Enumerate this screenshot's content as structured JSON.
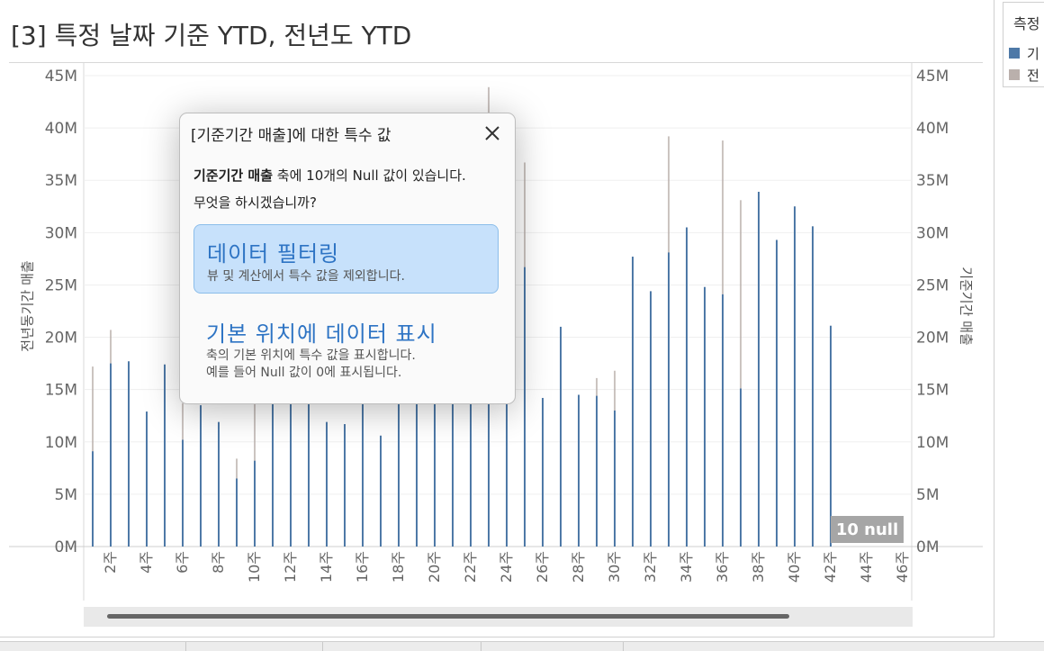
{
  "title": "[3] 특정 날짜 기준 YTD, 전년도 YTD",
  "legend": {
    "title": "측정",
    "items": [
      {
        "label": "기",
        "color": "#4e79a7"
      },
      {
        "label": "전",
        "color": "#bab0ac"
      }
    ]
  },
  "axes": {
    "left_title": "전년동기간 매출",
    "right_title": "기준기간 매출"
  },
  "null_badge": "10 null",
  "dialog": {
    "title": "[기준기간 매출]에 대한 특수 값",
    "message_bold": "기준기간 매출",
    "message_rest": " 축에 10개의 Null 값이 있습니다.",
    "question": "무엇을 하시겠습니까?",
    "options": [
      {
        "heading": "데이터 필터링",
        "sub1": "뷰 및 계산에서 특수 값을 제외합니다.",
        "selected": true
      },
      {
        "heading": "기본 위치에 데이터 표시",
        "sub1": "축의 기본 위치에 특수 값을 표시합니다.",
        "sub2": "예를 들어 Null 값이 0에 표시됩니다.",
        "selected": false
      }
    ]
  },
  "chart_data": {
    "type": "bar",
    "title": "",
    "xlabel": "",
    "ylabel_left": "전년동기간 매출",
    "ylabel_right": "기준기간 매출",
    "ylim": [
      0,
      45
    ],
    "y_unit": "M",
    "y_ticks": [
      "0M",
      "5M",
      "10M",
      "15M",
      "20M",
      "25M",
      "30M",
      "35M",
      "40M",
      "45M"
    ],
    "x_tick_labels": [
      "2주",
      "4주",
      "6주",
      "8주",
      "10주",
      "12주",
      "14주",
      "16주",
      "18주",
      "20주",
      "22주",
      "24주",
      "26주",
      "28주",
      "30주",
      "32주",
      "34주",
      "36주",
      "38주",
      "40주",
      "42주",
      "44주",
      "46주"
    ],
    "categories": [
      1,
      2,
      3,
      4,
      5,
      6,
      7,
      8,
      9,
      10,
      11,
      12,
      13,
      14,
      15,
      16,
      17,
      18,
      19,
      20,
      21,
      22,
      23,
      24,
      25,
      26,
      27,
      28,
      29,
      30,
      31,
      32,
      33,
      34,
      35,
      36,
      37,
      38,
      39,
      40,
      41,
      42,
      43,
      44,
      45,
      46
    ],
    "series": [
      {
        "name": "기준기간 매출",
        "color": "#4e79a7",
        "values": [
          9.1,
          17.5,
          17.7,
          12.9,
          17.4,
          10.2,
          13.5,
          11.9,
          6.5,
          8.2,
          14.8,
          13.9,
          14.1,
          11.9,
          11.7,
          15.0,
          10.6,
          14.9,
          14.6,
          15.6,
          16.1,
          16.6,
          15.6,
          34.7,
          26.7,
          14.2,
          21.0,
          14.5,
          14.4,
          13.0,
          27.7,
          24.4,
          28.1,
          30.5,
          24.8,
          24.1,
          15.1,
          33.9,
          29.3,
          32.5,
          30.6,
          21.1,
          null,
          null,
          null,
          null
        ]
      },
      {
        "name": "전년동기간 매출",
        "color": "#bab0ac",
        "values": [
          17.2,
          20.7,
          17.7,
          12.9,
          17.4,
          13.7,
          13.5,
          11.9,
          8.4,
          14.0,
          14.8,
          13.9,
          14.1,
          11.9,
          11.7,
          15.0,
          10.6,
          14.9,
          14.6,
          15.6,
          16.1,
          16.6,
          43.9,
          34.7,
          36.7,
          14.2,
          21.0,
          14.5,
          16.1,
          16.8,
          27.7,
          24.4,
          39.2,
          30.5,
          24.8,
          38.8,
          33.1,
          33.9,
          29.3,
          32.5,
          30.6,
          21.1,
          null,
          null,
          null,
          null
        ]
      }
    ]
  }
}
